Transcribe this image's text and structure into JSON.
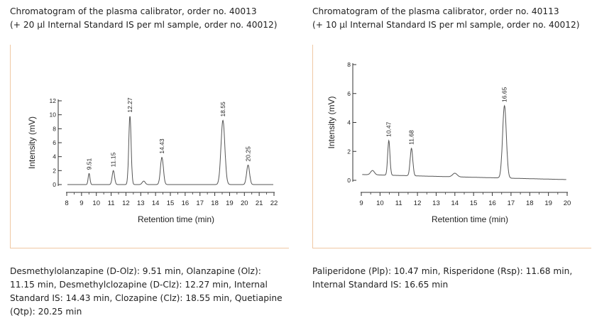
{
  "panels": [
    {
      "caption_line1": "Chromatogram of the plasma calibrator, order no. 40013",
      "caption_line2": "(+ 20 µl Internal Standard IS per ml sample, order no. 40012)",
      "legend": "Desmethylolanzapine (D-Olz): 9.51 min, Olanzapine (Olz): 11.15 min, Desmethylclozapine (D-Clz): 12.27 min, Internal Standard IS: 14.43 min, Clozapine (Clz): 18.55 min, Quetiapine (Qtp): 20.25 min"
    },
    {
      "caption_line1": "Chromatogram of the plasma calibrator, order no. 40113",
      "caption_line2": "(+ 10 µl Internal Standard IS per ml sample, order no. 40012)",
      "legend": "Paliperidone (Plp): 10.47 min, Risperidone (Rsp): 11.68 min, Internal Standard IS: 16.65 min"
    }
  ],
  "chart_data": [
    {
      "type": "line",
      "xlabel": "Retention time (min)",
      "ylabel": "Intensity (mV)",
      "xlim": [
        8,
        22
      ],
      "ylim": [
        0,
        12
      ],
      "xticks": [
        8,
        9,
        10,
        11,
        12,
        13,
        14,
        15,
        16,
        17,
        18,
        19,
        20,
        21,
        22
      ],
      "yticks": [
        0,
        2,
        4,
        6,
        8,
        10,
        12
      ],
      "baseline": 0,
      "peaks": [
        {
          "label": "9.51",
          "x": 9.51,
          "y": 1.6,
          "width": 0.06
        },
        {
          "label": "11.15",
          "x": 11.15,
          "y": 2.0,
          "width": 0.08
        },
        {
          "label": "12.27",
          "x": 12.27,
          "y": 9.8,
          "width": 0.08
        },
        {
          "label": "",
          "x": 13.2,
          "y": 0.5,
          "width": 0.1
        },
        {
          "label": "14.43",
          "x": 14.43,
          "y": 3.9,
          "width": 0.1
        },
        {
          "label": "18.55",
          "x": 18.55,
          "y": 9.2,
          "width": 0.13
        },
        {
          "label": "20.25",
          "x": 20.25,
          "y": 2.8,
          "width": 0.1
        }
      ]
    },
    {
      "type": "line",
      "xlabel": "Retention time (min)",
      "ylabel": "Intensity (mV)",
      "xlim": [
        9,
        20
      ],
      "ylim": [
        -2,
        8
      ],
      "xticks": [
        9,
        10,
        11,
        12,
        13,
        14,
        15,
        16,
        17,
        18,
        19,
        20
      ],
      "yticks": [
        0,
        2,
        4,
        6,
        8
      ],
      "baseline": 0.4,
      "peaks": [
        {
          "label": "",
          "x": 9.6,
          "y": 0.3,
          "width": 0.1
        },
        {
          "label": "10.47",
          "x": 10.47,
          "y": 2.4,
          "width": 0.06
        },
        {
          "label": "11.68",
          "x": 11.68,
          "y": 1.9,
          "width": 0.07
        },
        {
          "label": "",
          "x": 14.0,
          "y": 0.25,
          "width": 0.12
        },
        {
          "label": "16.65",
          "x": 16.65,
          "y": 5.0,
          "width": 0.1
        }
      ]
    }
  ]
}
